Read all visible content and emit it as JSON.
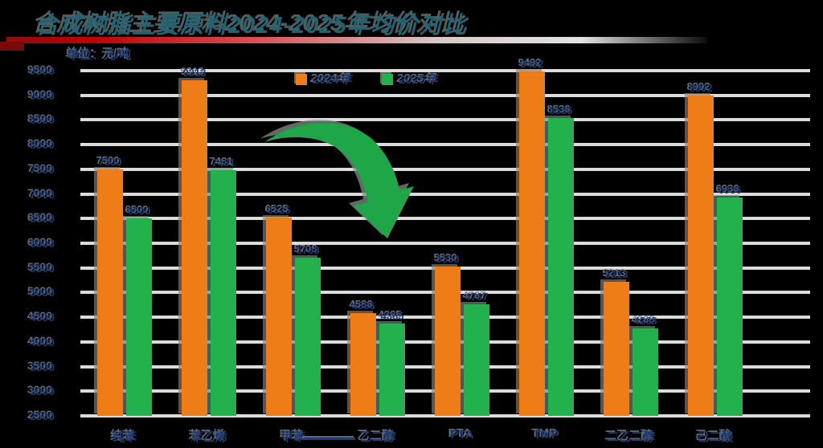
{
  "header": {
    "title": "合成树脂主要原料2024-2025年均价对比",
    "unit_label": "单位：元/吨"
  },
  "legend": {
    "items": [
      {
        "label": "2024年",
        "color": "#ee7c17"
      },
      {
        "label": "2025年",
        "color": "#23b14d"
      }
    ]
  },
  "colors": {
    "background": "#000000",
    "gridline": "#dcdcdc",
    "text_navy": "#1b3c78",
    "title_teal": "#1f6474",
    "divider_red": "#c00000",
    "arrow_green": "#1fa648"
  },
  "annotations": {
    "trend_arrow": "down-trend-arrow"
  },
  "chart_data": {
    "type": "bar",
    "title": "合成树脂主要原料2024-2025年均价对比",
    "xlabel": "",
    "ylabel": "元/吨",
    "ylim": [
      2500,
      9500
    ],
    "yticks": [
      9500,
      9000,
      8500,
      8000,
      7500,
      7000,
      6500,
      6000,
      5500,
      5000,
      4500,
      4000,
      3500,
      3000,
      2500
    ],
    "grid": true,
    "legend_position": "top",
    "categories": [
      "纯苯",
      "苯乙烯",
      "甲苯",
      "乙二醇",
      "PTA",
      "TMP",
      "二乙二醇",
      "己二酸"
    ],
    "series": [
      {
        "name": "2024年",
        "color": "#ee7c17",
        "values": [
          7500,
          9313,
          6525,
          4586,
          5530,
          9492,
          5213,
          8992
        ]
      },
      {
        "name": "2025年",
        "color": "#23b14d",
        "values": [
          6500,
          7481,
          5708,
          4365,
          4767,
          8536,
          4268,
          6936
        ]
      }
    ]
  }
}
